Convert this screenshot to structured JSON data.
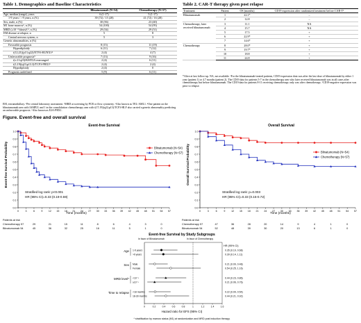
{
  "table1": {
    "title": "Table 1. Demographics and Baseline Characteristics",
    "col1": "Blinatumomab (N=54)",
    "col2": "Chemotherapy (N=57)",
    "rows": [
      {
        "label": "Age, median (range), years",
        "a": "6 (1-17)",
        "b": "5 (1-17)",
        "indent": 0
      },
      {
        "label": "1-9 years / >9 years, n (%)",
        "a": "39 (72) / 15 (28)",
        "b": "41 (72) / 16 (28)",
        "indent": 1
      },
      {
        "label": "Sex, male, n (%)",
        "a": "30 (56)",
        "b": "23 (40)",
        "indent": 0
      },
      {
        "label": "M1 bone marrow¹, n (%)",
        "a": "54 (100)",
        "b": "54 (95)",
        "indent": 0
      },
      {
        "label": "MRD (≥10⁻³ blasts)²,³, n (%)",
        "a": "29 (54)",
        "b": "29 (51)",
        "indent": 0
      },
      {
        "label": "EM disease at relapse, n",
        "a": "5",
        "b": "8",
        "indent": 0
      },
      {
        "label": "Central nervous system, n",
        "a": "5",
        "b": "3",
        "indent": 1
      },
      {
        "label": "Genetic abnormalities, n (%)",
        "a": "",
        "b": "",
        "indent": 0
      },
      {
        "label": "Favorable prognosis",
        "a": "8 (15)",
        "b": "11 (19)",
        "indent": 1
      },
      {
        "label": "Hyperdiploidy",
        "a": "6 (11)",
        "b": "7 (12)",
        "indent": 2
      },
      {
        "label": "t(12;21)(p13;q22)/ETV6-RUNX1⁴",
        "a": "2 (4)",
        "b": "4 (7)",
        "indent": 2
      },
      {
        "label": "Unfavorable prognosis⁵",
        "a": "7 (13)",
        "b": "9 (16)",
        "indent": 1
      },
      {
        "label": "t(v;11q23)/KMT2A rearranged",
        "a": "2 (4)",
        "b": "6 (11)",
        "indent": 2
      },
      {
        "label": "t(1;19)(q23;p13.3)/TCF3-PBX1⁶",
        "a": "2 (4)",
        "b": "2 (4)",
        "indent": 2
      },
      {
        "label": "Hypodiploidy",
        "a": "2 (4)",
        "b": "0",
        "indent": 2
      },
      {
        "label": "Prognosis undefined",
        "a": "5 (9)",
        "b": "6 (11)",
        "indent": 1
      }
    ],
    "footnote": "EM, extramedullary. ¹Per central laboratory assessment. ²MRD at screening by PCR or flow cytometry. ³Also known as TEL-AML1. ⁴One patient on the blinatumomab arm with IAMP21 and 1 in the consolidation chemotherapy arm with t(17;19)(q22;p13)/TCF3-HLF also carried a genetic abnormality predicting an unfavorable prognosis. ⁶Also known as E2A-PBX1."
  },
  "table2": {
    "title": "Table 2. CAR-T therapy given post relapse",
    "headers": [
      "Treatment",
      "Patient",
      "OS (months)",
      "CD19 expression after randomized treatment before CAR-T¹"
    ],
    "groups": [
      {
        "name": "Blinatumomab",
        "rows": [
          [
            "1",
            "22.1*",
            "–"
          ],
          [
            "2",
            "12.8",
            "–"
          ]
        ]
      },
      {
        "name": "Chemotherapy, later received blinatumomab",
        "rows": [
          [
            "3",
            "11.1",
            "NA"
          ],
          [
            "4",
            "15.7",
            "NA"
          ],
          [
            "5",
            "17.5",
            "+"
          ],
          [
            "6",
            "22.9*",
            "+"
          ],
          [
            "7",
            "14.6*",
            "+"
          ]
        ]
      },
      {
        "name": "Chemotherapy",
        "rows": [
          [
            "8",
            "28.0*",
            "+"
          ],
          [
            "9",
            "19.7*",
            "+"
          ],
          [
            "10",
            "18.8",
            "+"
          ],
          [
            "11",
            "24.8",
            "+"
          ]
        ]
      }
    ],
    "footnote": "*Alive at last follow-up. NA, not available. ¹For the blinatumomab-treated patients, CD19 expression data was after the last dose of blinatumomab by either 1 year (patient 1) or 4.7 months (patient 2). The CD19 data for patients 5-7 in the chemotherapy arm who later received blinatumomab was in all cases after chemotherapy but before blinatumomab. The CD19 data for patients 8-11 receiving chemotherapy only was after chemotherapy. ²CD19-negative expression was prior to relapse."
  },
  "figure": {
    "title": "Figure. Event-free and overall survival",
    "xlabel": "Time (months)",
    "ticks": [
      "0",
      "3",
      "6",
      "9",
      "12",
      "15",
      "18",
      "21",
      "24",
      "27",
      "30",
      "33",
      "36",
      "39",
      "42",
      "45",
      "48",
      "51",
      "54",
      "57"
    ],
    "yticks": [
      "0.0",
      "0.1",
      "0.2",
      "0.3",
      "0.4",
      "0.5",
      "0.6",
      "0.7",
      "0.8",
      "0.9",
      "1.0"
    ],
    "efs": {
      "title": "Event-free Survival",
      "ylabel": "Event-free Survival Probability",
      "legend": [
        "Blinatumomab (N=54)",
        "Chemotherapy (N=57)"
      ],
      "stat1": "Stratified log rank: p<0.001",
      "stat2": "HR (95% CI)=0.33 (0.19-0.59)",
      "risk_label": "Patients at risk",
      "risk_rows": [
        {
          "name": "Chemotherapy 57",
          "values": [
            "29",
            "21",
            "15",
            "11",
            "8",
            "6",
            "4",
            "3",
            "0"
          ]
        },
        {
          "name": "Blinatumomab 54",
          "values": [
            "45",
            "36",
            "32",
            "25",
            "16",
            "11",
            "5",
            "1",
            "0"
          ]
        }
      ]
    },
    "os": {
      "title": "Overall Survival",
      "ylabel": "Overall Survival Probability",
      "legend": [
        "Blinatumomab (N=54)",
        "Chemotherapy (N=57)"
      ],
      "stat1": "Stratified log rank: p=0.003",
      "stat2": "HR (95% CI)=0.33 (0.15-0.72)",
      "risk_label": "Patients at risk",
      "risk_rows": [
        {
          "name": "Chemotherapy 57",
          "values": [
            "47",
            "36",
            "28",
            "20",
            "14",
            "9",
            "4",
            "1",
            "0"
          ]
        },
        {
          "name": "Blinatumomab 54",
          "values": [
            "52",
            "48",
            "39",
            "30",
            "20",
            "13",
            "6",
            "1",
            "0"
          ]
        }
      ]
    },
    "forest": {
      "title": "Event-free Survival by Study Subgroups",
      "favor_blina": "In favor of Blinatumomab",
      "favor_chemo": "In favor of Chemotherapy",
      "hr_header": "HR (95% CI)",
      "xlabel": "Hazard ratio for EFS (95% CI)",
      "xticks": [
        "0",
        "0.2",
        "0.4",
        "0.6",
        "0.8",
        "1",
        "1.2",
        "1.4",
        "1.6"
      ],
      "footnote": "* stratification by marrow status (M1) at randomization and MRD post induction therapy.",
      "groups": [
        {
          "name": "Age",
          "rows": [
            {
              "label": "1-9 years",
              "hr": "0.35 (0.19, 0.68)"
            },
            {
              "label": ">9 years",
              "hr": "0.39 (0.14, 1.11)"
            }
          ]
        },
        {
          "name": "Sex",
          "rows": [
            {
              "label": "Male",
              "hr": "0.21 (0.09, 0.48)"
            },
            {
              "label": "Female",
              "hr": "0.54 (0.25, 1.16)"
            }
          ]
        },
        {
          "name": "MRD level*",
          "rows": [
            {
              "label": "<10⁻³",
              "hr": "0.44 (0.23, 0.86)"
            },
            {
              "label": "≥10⁻³",
              "hr": "0.21 (0.06, 0.76)"
            }
          ]
        },
        {
          "name": "Time to relapse",
          "rows": [
            {
              "label": "<18 months",
              "hr": "0.22 (0.09, 0.54)"
            },
            {
              "label": "18-30 months",
              "hr": "0.44 (0.21, 0.92)"
            }
          ]
        }
      ]
    }
  },
  "chart_data": [
    {
      "type": "line",
      "title": "Event-free Survival",
      "xlabel": "Time (months)",
      "ylabel": "Event-free Survival Probability",
      "xlim": [
        0,
        57
      ],
      "ylim": [
        0,
        1
      ],
      "series": [
        {
          "name": "Blinatumomab (N=54)",
          "color": "#e8201f",
          "x": [
            0,
            1,
            3,
            4,
            5,
            6,
            8,
            9,
            10,
            12,
            15,
            18,
            21,
            24,
            30,
            33,
            40,
            45,
            48,
            52,
            57
          ],
          "y": [
            1,
            0.98,
            0.94,
            0.91,
            0.89,
            0.87,
            0.85,
            0.82,
            0.8,
            0.78,
            0.76,
            0.74,
            0.72,
            0.7,
            0.7,
            0.69,
            0.68,
            0.68,
            0.63,
            0.55,
            0.55
          ]
        },
        {
          "name": "Chemotherapy (N=57)",
          "color": "#1f2ebd",
          "x": [
            0,
            1,
            2,
            3,
            4,
            5,
            6,
            7,
            8,
            10,
            12,
            15,
            18,
            21,
            24,
            27,
            30,
            57
          ],
          "y": [
            1,
            0.95,
            0.86,
            0.77,
            0.67,
            0.58,
            0.52,
            0.47,
            0.43,
            0.4,
            0.37,
            0.34,
            0.31,
            0.29,
            0.28,
            0.27,
            0.27,
            0.27
          ]
        }
      ]
    },
    {
      "type": "line",
      "title": "Overall Survival",
      "xlabel": "Time (months)",
      "ylabel": "Overall Survival Probability",
      "xlim": [
        0,
        57
      ],
      "ylim": [
        0,
        1
      ],
      "series": [
        {
          "name": "Blinatumomab (N=54)",
          "color": "#e8201f",
          "x": [
            0,
            3,
            6,
            9,
            12,
            15,
            18,
            21,
            24,
            30,
            36,
            42,
            48,
            57
          ],
          "y": [
            1,
            0.98,
            0.96,
            0.94,
            0.92,
            0.91,
            0.88,
            0.86,
            0.85,
            0.85,
            0.85,
            0.85,
            0.85,
            0.85
          ]
        },
        {
          "name": "Chemotherapy (N=57)",
          "color": "#1f2ebd",
          "x": [
            0,
            3,
            6,
            9,
            12,
            15,
            18,
            21,
            24,
            27,
            30,
            36,
            42,
            48,
            57
          ],
          "y": [
            1,
            0.93,
            0.88,
            0.82,
            0.76,
            0.7,
            0.66,
            0.62,
            0.6,
            0.58,
            0.57,
            0.55,
            0.54,
            0.54,
            0.54
          ]
        }
      ]
    },
    {
      "type": "scatter",
      "title": "Event-free Survival by Study Subgroups",
      "xlabel": "Hazard ratio for EFS (95% CI)",
      "xlim": [
        0,
        1.6
      ],
      "categories": [
        "1-9 years",
        ">9 years",
        "Male",
        "Female",
        "<10⁻³",
        "≥10⁻³",
        "<18 months",
        "18-30 months"
      ],
      "hr": [
        0.35,
        0.39,
        0.21,
        0.54,
        0.44,
        0.21,
        0.22,
        0.44
      ],
      "lower": [
        0.19,
        0.14,
        0.09,
        0.25,
        0.23,
        0.06,
        0.09,
        0.21
      ],
      "upper": [
        0.68,
        1.11,
        0.48,
        1.16,
        0.86,
        0.76,
        0.54,
        0.92
      ]
    }
  ]
}
